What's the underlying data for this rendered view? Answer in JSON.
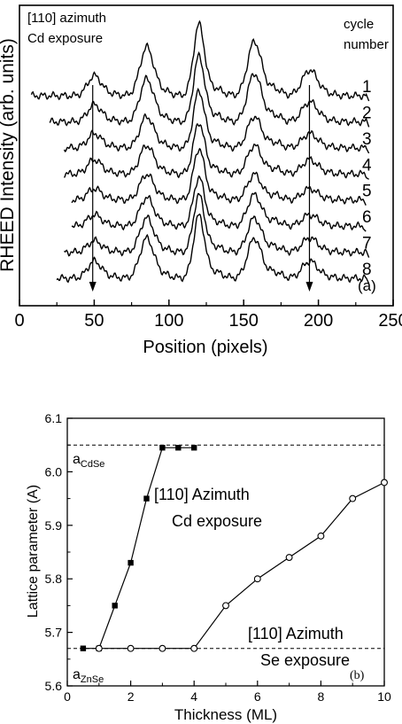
{
  "chart_data": [
    {
      "type": "line",
      "panel_label": "(a)",
      "xlabel": "Position (pixels)",
      "ylabel": "RHEED Intensity (arb. units)",
      "xlim": [
        0,
        250
      ],
      "xticks": [
        "0",
        "50",
        "100",
        "150",
        "200",
        "250"
      ],
      "annotations": [
        "[110] azimuth",
        "Cd exposure"
      ],
      "legend_header": [
        "cycle",
        "number"
      ],
      "x_range": [
        8,
        232
      ],
      "peak_positions": [
        50,
        85,
        120,
        157,
        194
      ],
      "marker_lines_x": [
        49,
        194
      ],
      "series": [
        {
          "name": "1",
          "x_start": 8,
          "x_end": 232,
          "peaks": [
            0.35,
            0.85,
            1.25,
            0.95,
            0.45
          ]
        },
        {
          "name": "2",
          "x_start": 20,
          "x_end": 232,
          "peaks": [
            0.3,
            0.75,
            1.15,
            0.85,
            0.35
          ]
        },
        {
          "name": "3",
          "x_start": 30,
          "x_end": 232,
          "peaks": [
            0.25,
            0.55,
            1.0,
            0.55,
            0.25
          ]
        },
        {
          "name": "4",
          "x_start": 30,
          "x_end": 232,
          "peaks": [
            0.25,
            0.5,
            0.9,
            0.5,
            0.25
          ]
        },
        {
          "name": "5",
          "x_start": 35,
          "x_end": 230,
          "peaks": [
            0.2,
            0.45,
            0.9,
            0.45,
            0.2
          ]
        },
        {
          "name": "6",
          "x_start": 35,
          "x_end": 230,
          "peaks": [
            0.2,
            0.5,
            0.85,
            0.55,
            0.2
          ]
        },
        {
          "name": "7",
          "x_start": 30,
          "x_end": 232,
          "peaks": [
            0.2,
            0.6,
            1.0,
            0.6,
            0.25
          ]
        },
        {
          "name": "8",
          "x_start": 25,
          "x_end": 232,
          "peaks": [
            0.3,
            0.7,
            1.1,
            0.7,
            0.3
          ]
        }
      ]
    },
    {
      "type": "line",
      "panel_label": "(b)",
      "xlabel": "Thickness (ML)",
      "ylabel": "Lattice parameter (A)",
      "xlim": [
        0,
        10
      ],
      "ylim": [
        5.6,
        6.1
      ],
      "xticks": [
        "0",
        "2",
        "4",
        "6",
        "8",
        "10"
      ],
      "yticks": [
        "5.6",
        "5.7",
        "5.8",
        "5.9",
        "6.0",
        "6.1"
      ],
      "reference_lines": [
        {
          "label_main": "a",
          "label_sub": "CdSe",
          "y": 6.05
        },
        {
          "label_main": "a",
          "label_sub": "ZnSe",
          "y": 5.67
        }
      ],
      "series": [
        {
          "annotation": [
            "[110] Azimuth",
            "Cd exposure"
          ],
          "marker": "filled-square",
          "x": [
            0.5,
            1.0,
            1.5,
            2.0,
            2.5,
            3.0,
            3.5,
            4.0
          ],
          "y": [
            5.67,
            5.67,
            5.75,
            5.83,
            5.95,
            6.045,
            6.045,
            6.045
          ]
        },
        {
          "annotation": [
            "[110] Azimuth",
            "Se exposure"
          ],
          "marker": "open-circle",
          "x": [
            1,
            2,
            3,
            4,
            5,
            6,
            7,
            8,
            9,
            10
          ],
          "y": [
            5.67,
            5.67,
            5.67,
            5.67,
            5.75,
            5.8,
            5.84,
            5.88,
            5.95,
            5.98
          ]
        }
      ]
    }
  ]
}
